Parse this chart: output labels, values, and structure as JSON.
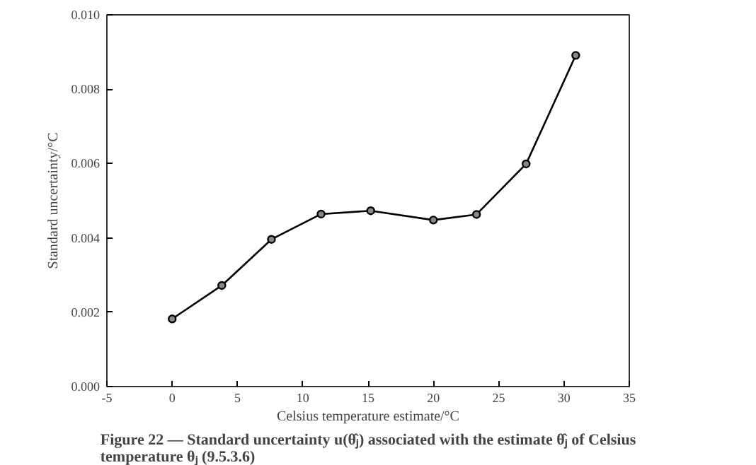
{
  "chart_data": {
    "type": "line",
    "title": "Figure 22 — Standard uncertainty u(θ̂ⱼ) associated with the estimate θ̂ⱼ of Celsius\ntemperature θⱼ (9.5.3.6)",
    "xlabel": "Celsius temperature estimate/°C",
    "ylabel": "Standard uncertainty/°C",
    "x": [
      0,
      3.8,
      7.6,
      11.4,
      15.2,
      20,
      23.3,
      27.1,
      30.9
    ],
    "series": [
      {
        "color": "#000000",
        "values": [
          0.00182,
          0.00272,
          0.00396,
          0.00464,
          0.00473,
          0.00448,
          0.00463,
          0.00599,
          0.00891
        ]
      }
    ],
    "xlim": [
      -5,
      35
    ],
    "xticks": [
      -5,
      0,
      5,
      10,
      15,
      20,
      25,
      30,
      35
    ],
    "ylim": [
      0,
      0.01
    ],
    "yticks": [
      {
        "value": 0,
        "label": "0.000"
      },
      {
        "value": 0.002,
        "label": "0.002"
      },
      {
        "value": 0.004,
        "label": "0.004"
      },
      {
        "value": 0.006,
        "label": "0.006"
      },
      {
        "value": 0.008,
        "label": "0.008"
      },
      {
        "value": 0.01,
        "label": "0.010"
      }
    ],
    "marker": "circle",
    "line_style": "solid"
  }
}
